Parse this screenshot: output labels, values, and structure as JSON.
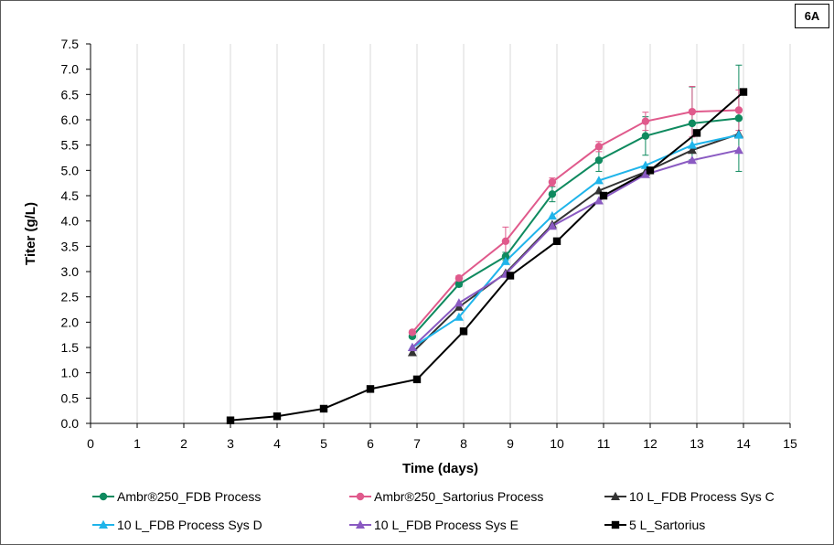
{
  "panel_label": "6A",
  "chart_data": {
    "type": "line",
    "title": "",
    "xlabel": "Time (days)",
    "ylabel": "Titer (g/L)",
    "xlim": [
      0,
      15
    ],
    "ylim": [
      0,
      7.5
    ],
    "xticks": [
      "0",
      "1",
      "2",
      "3",
      "4",
      "5",
      "6",
      "7",
      "8",
      "9",
      "10",
      "11",
      "12",
      "13",
      "14",
      "15"
    ],
    "yticks": [
      "0.0",
      "0.5",
      "1.0",
      "1.5",
      "2.0",
      "2.5",
      "3.0",
      "3.5",
      "4.0",
      "4.5",
      "5.0",
      "5.5",
      "6.0",
      "6.5",
      "7.0",
      "7.5"
    ],
    "grid": "vertical",
    "legend": "bottom",
    "series": [
      {
        "name": "Ambr®250_FDB Process",
        "color": "#0f8a5f",
        "marker": "circle",
        "x": [
          6.9,
          7.9,
          8.9,
          9.9,
          10.9,
          11.9,
          12.9,
          13.9
        ],
        "y": [
          1.72,
          2.75,
          3.3,
          4.53,
          5.2,
          5.68,
          5.93,
          6.03
        ],
        "err": [
          0,
          0.05,
          0.08,
          0.15,
          0.22,
          0.38,
          0.72,
          1.05
        ]
      },
      {
        "name": "Ambr®250_Sartorius Process",
        "color": "#e05a8c",
        "marker": "circle",
        "x": [
          6.9,
          7.9,
          8.9,
          9.9,
          10.9,
          11.9,
          12.9,
          13.9
        ],
        "y": [
          1.8,
          2.87,
          3.6,
          4.77,
          5.47,
          5.97,
          6.16,
          6.19
        ],
        "err": [
          0,
          0.05,
          0.28,
          0.08,
          0.1,
          0.18,
          0.5,
          0.4
        ]
      },
      {
        "name": "10 L_FDB Process Sys C",
        "color": "#333333",
        "marker": "triangle",
        "x": [
          6.9,
          7.9,
          8.9,
          9.9,
          10.9,
          11.9,
          12.9,
          13.9
        ],
        "y": [
          1.4,
          2.3,
          2.97,
          3.93,
          4.6,
          4.97,
          5.4,
          5.72
        ],
        "err": [
          0,
          0,
          0,
          0,
          0,
          0,
          0,
          0
        ]
      },
      {
        "name": "10 L_FDB Process Sys D",
        "color": "#1fb4ea",
        "marker": "triangle",
        "x": [
          6.9,
          7.9,
          8.9,
          9.9,
          10.9,
          11.9,
          12.9,
          13.9
        ],
        "y": [
          1.5,
          2.1,
          3.2,
          4.1,
          4.8,
          5.1,
          5.5,
          5.7
        ],
        "err": [
          0,
          0,
          0,
          0,
          0,
          0,
          0,
          0
        ]
      },
      {
        "name": "10 L_FDB Process Sys E",
        "color": "#8a5ac2",
        "marker": "triangle",
        "x": [
          6.9,
          7.9,
          8.9,
          9.9,
          10.9,
          11.9,
          12.9,
          13.9
        ],
        "y": [
          1.5,
          2.38,
          2.95,
          3.9,
          4.4,
          4.92,
          5.2,
          5.4
        ],
        "err": [
          0,
          0,
          0,
          0,
          0,
          0,
          0,
          0
        ]
      },
      {
        "name": "5 L_Sartorius",
        "color": "#000000",
        "marker": "square",
        "x": [
          3.0,
          4.0,
          5.0,
          6.0,
          7.0,
          8.0,
          9.0,
          10.0,
          11.0,
          12.0,
          13.0,
          14.0
        ],
        "y": [
          0.06,
          0.14,
          0.29,
          0.68,
          0.87,
          1.82,
          2.92,
          3.6,
          4.5,
          5.0,
          5.74,
          6.55
        ],
        "err": [
          0,
          0,
          0,
          0,
          0,
          0,
          0,
          0,
          0,
          0,
          0,
          0
        ]
      }
    ]
  }
}
